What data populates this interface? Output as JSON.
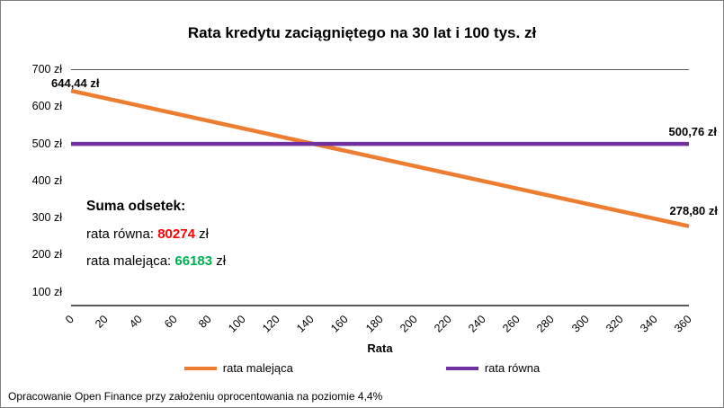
{
  "title": "Rata kredytu zaciągniętego na 30 lat i 100 tys. zł",
  "chart_data": {
    "type": "line",
    "x": [
      0,
      360
    ],
    "series": [
      {
        "name": "rata malejąca",
        "color": "#ED7D31",
        "values": [
          644.44,
          278.8
        ]
      },
      {
        "name": "rata równa",
        "color": "#7030A0",
        "values": [
          500.76,
          500.76
        ]
      }
    ],
    "x_ticks": [
      0,
      20,
      40,
      60,
      80,
      100,
      120,
      140,
      160,
      180,
      200,
      220,
      240,
      260,
      280,
      300,
      320,
      340,
      360
    ],
    "y_ticks": [
      "700 zł",
      "600 zł",
      "500 zł",
      "400 zł",
      "300 zł",
      "200 zł",
      "100 zł"
    ],
    "xlabel": "Rata",
    "xlim": [
      0,
      360
    ],
    "ylim": [
      60,
      700
    ],
    "grid": false,
    "legend_position": "bottom",
    "annotations": [
      {
        "text": "644,44 zł",
        "series": "rata malejąca",
        "x": 0
      },
      {
        "text": "500,76 zł",
        "series": "rata równa",
        "x": 360
      },
      {
        "text": "278,80 zł",
        "series": "rata malejąca",
        "x": 360
      }
    ]
  },
  "summary": {
    "heading": "Suma odsetek:",
    "rows": [
      {
        "label": "rata równa:",
        "value": "80274",
        "suffix": "zł",
        "color": "#FF0000"
      },
      {
        "label": "rata malejąca:",
        "value": "66183",
        "suffix": "zł",
        "color": "#00B050"
      }
    ]
  },
  "footer": "Opracowanie Open Finance przy założeniu oprocentowania na poziomie 4,4%"
}
